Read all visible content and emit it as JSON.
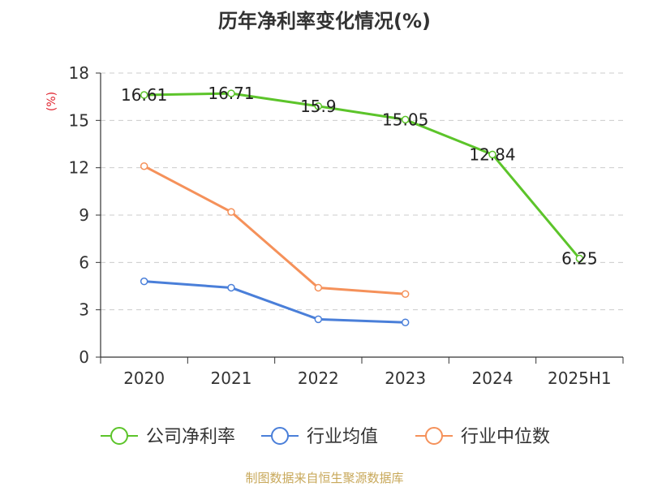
{
  "chart_data": {
    "type": "line",
    "title": "历年净利率变化情况(%)",
    "ylabel": "(%)",
    "xlabel": "",
    "categories": [
      "2020",
      "2021",
      "2022",
      "2023",
      "2024",
      "2025H1"
    ],
    "ylim": [
      0,
      18
    ],
    "yticks": [
      0,
      3,
      6,
      9,
      12,
      15,
      18
    ],
    "grid": "horizontal dashed",
    "legend_position": "bottom",
    "series": [
      {
        "name": "公司净利率",
        "color": "#5cc42a",
        "values": [
          16.61,
          16.71,
          15.9,
          15.05,
          12.84,
          6.25
        ],
        "labels": [
          "16.61",
          "16.71",
          "15.9",
          "15.05",
          "12.84",
          "6.25"
        ]
      },
      {
        "name": "行业均值",
        "color": "#4a7fd9",
        "values": [
          4.8,
          4.4,
          2.4,
          2.2,
          null,
          null
        ]
      },
      {
        "name": "行业中位数",
        "color": "#f5915a",
        "values": [
          12.1,
          9.2,
          4.4,
          4.0,
          null,
          null
        ]
      }
    ]
  },
  "footer": {
    "source": "制图数据来自恒生聚源数据库"
  }
}
